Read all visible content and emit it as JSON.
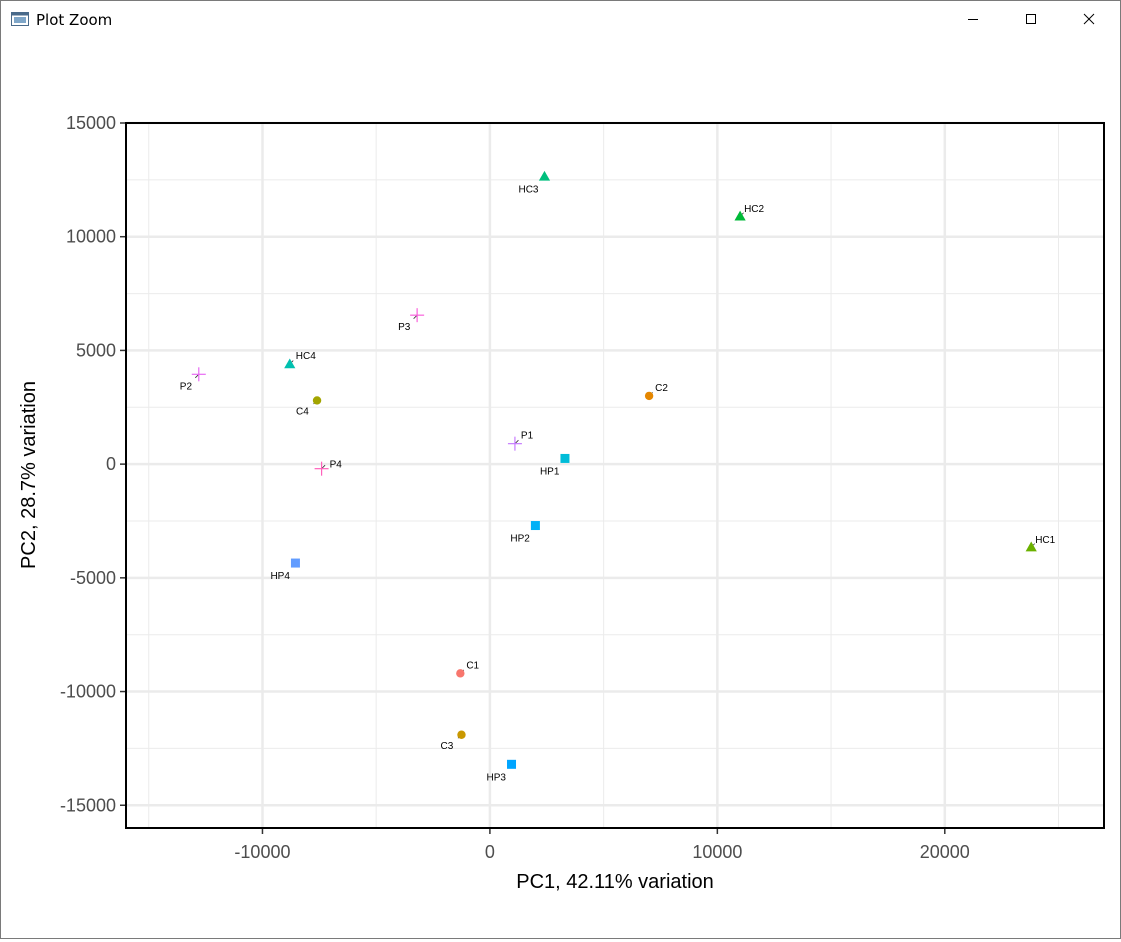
{
  "window": {
    "title": "Plot Zoom",
    "icons": {
      "app": "plot-window-icon",
      "minimize": "minimize-icon",
      "maximize": "maximize-icon",
      "close": "close-icon"
    }
  },
  "chart_data": {
    "type": "scatter",
    "title": "",
    "xlabel": "PC1, 42.11% variation",
    "ylabel": "PC2, 28.7% variation",
    "xlim": [
      -16000,
      27000
    ],
    "ylim": [
      -16000,
      15000
    ],
    "x_ticks": [
      -10000,
      0,
      10000,
      20000
    ],
    "y_ticks": [
      -15000,
      -10000,
      -5000,
      0,
      5000,
      10000,
      15000
    ],
    "x_tick_labels": [
      "-10000",
      "0",
      "10000",
      "20000"
    ],
    "y_tick_labels": [
      "-15000",
      "-10000",
      "-5000",
      "0",
      "5000",
      "10000",
      "15000"
    ],
    "grid": true,
    "legend": "none",
    "points": [
      {
        "label": "C1",
        "x": -1300,
        "y": -9200,
        "shape": "circle",
        "color": "#F8766D",
        "label_dx": 6,
        "label_dy": -5
      },
      {
        "label": "C2",
        "x": 7000,
        "y": 3000,
        "shape": "circle",
        "color": "#E58700",
        "label_dx": 6,
        "label_dy": -5
      },
      {
        "label": "C3",
        "x": -1250,
        "y": -11900,
        "shape": "circle",
        "color": "#C99800",
        "label_dx": -21,
        "label_dy": 14
      },
      {
        "label": "C4",
        "x": -7600,
        "y": 2800,
        "shape": "circle",
        "color": "#A3A500",
        "label_dx": -21,
        "label_dy": 14
      },
      {
        "label": "HC1",
        "x": 23800,
        "y": -3650,
        "shape": "triangle",
        "color": "#6BB100",
        "label_dx": 4,
        "label_dy": -4
      },
      {
        "label": "HC2",
        "x": 11000,
        "y": 10900,
        "shape": "triangle",
        "color": "#00BA38",
        "label_dx": 4,
        "label_dy": -4
      },
      {
        "label": "HC3",
        "x": 2400,
        "y": 12650,
        "shape": "triangle",
        "color": "#00BF7D",
        "label_dx": -26,
        "label_dy": 16
      },
      {
        "label": "HC4",
        "x": -8800,
        "y": 4400,
        "shape": "triangle",
        "color": "#00C0AF",
        "label_dx": 6,
        "label_dy": -5
      },
      {
        "label": "HP1",
        "x": 3300,
        "y": 250,
        "shape": "square",
        "color": "#00BCD8",
        "label_dx": -25,
        "label_dy": 16
      },
      {
        "label": "HP2",
        "x": 2000,
        "y": -2700,
        "shape": "square",
        "color": "#00B0F6",
        "label_dx": -25,
        "label_dy": 16
      },
      {
        "label": "HP3",
        "x": 950,
        "y": -13200,
        "shape": "square",
        "color": "#00A5FF",
        "label_dx": -25,
        "label_dy": 16
      },
      {
        "label": "HP4",
        "x": -8550,
        "y": -4350,
        "shape": "square",
        "color": "#619CFF",
        "label_dx": -25,
        "label_dy": 16
      },
      {
        "label": "P1",
        "x": 1100,
        "y": 900,
        "shape": "plus",
        "color": "#C77CFF",
        "label_dx": 6,
        "label_dy": -5
      },
      {
        "label": "P2",
        "x": -12800,
        "y": 3950,
        "shape": "plus",
        "color": "#E76BF3",
        "label_dx": -19,
        "label_dy": 15
      },
      {
        "label": "P3",
        "x": -3200,
        "y": 6550,
        "shape": "plus",
        "color": "#FA62DB",
        "label_dx": -19,
        "label_dy": 15
      },
      {
        "label": "P4",
        "x": -7400,
        "y": -200,
        "shape": "plus",
        "color": "#FF62BC",
        "label_dx": 8,
        "label_dy": -1
      }
    ]
  }
}
